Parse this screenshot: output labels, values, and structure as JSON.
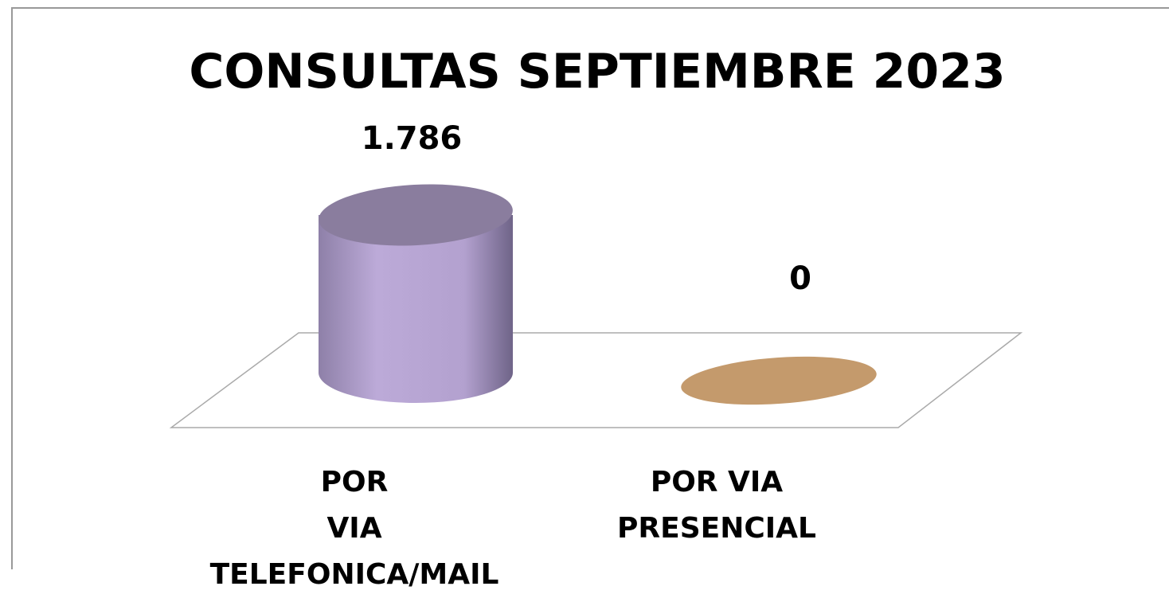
{
  "chart_data": {
    "type": "cylinder",
    "title": "CONSULTAS SEPTIEMBRE 2023",
    "categories": [
      "POR VIA TELEFONICA/MAIL",
      "POR VIA PRESENCIAL"
    ],
    "values": [
      1786,
      0
    ],
    "value_labels": [
      "1.786",
      "0"
    ],
    "colors": [
      "#b9a8d6",
      "#c49a6c"
    ]
  }
}
